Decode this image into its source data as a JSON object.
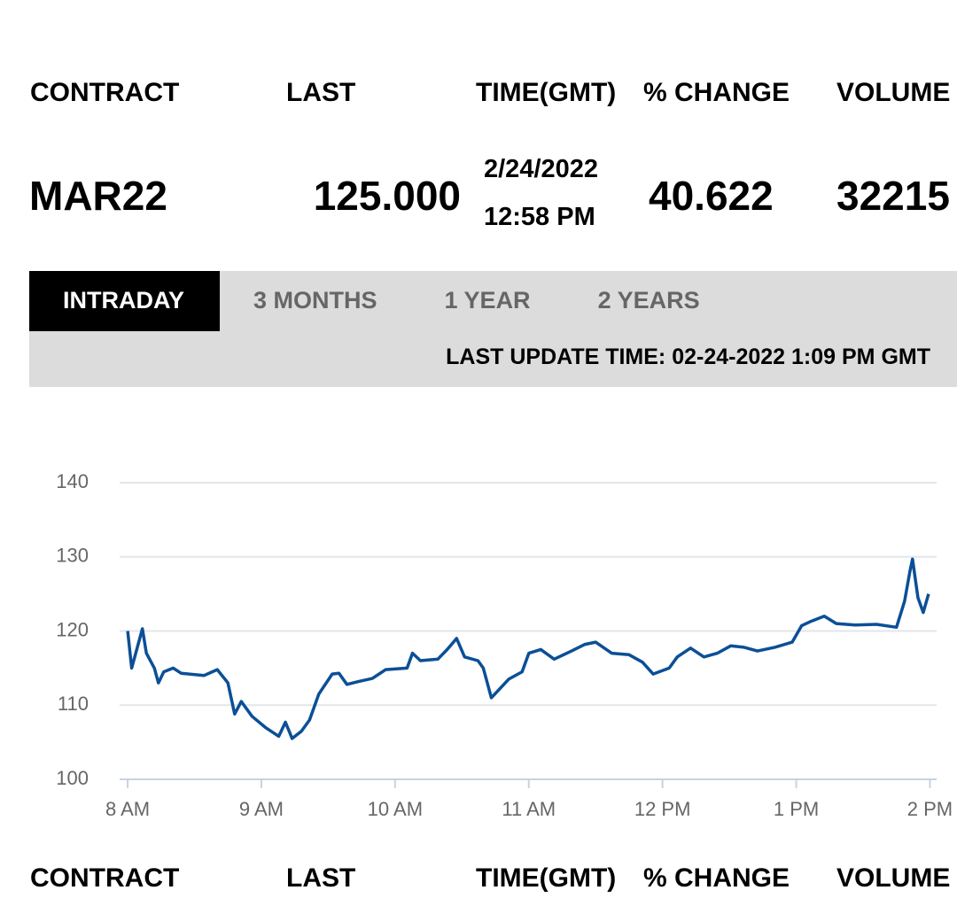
{
  "table": {
    "columns": [
      "CONTRACT",
      "LAST",
      "TIME(GMT)",
      "% CHANGE",
      "VOLUME"
    ],
    "row": {
      "contract": "MAR22",
      "last": "125.000",
      "date": "2/24/2022",
      "time": "12:58 PM",
      "change": "40.622",
      "volume": "32215"
    }
  },
  "tabs": [
    "INTRADAY",
    "3 MONTHS",
    "1 YEAR",
    "2 YEARS"
  ],
  "last_update": "LAST UPDATE TIME: 02-24-2022 1:09 PM GMT",
  "chart_data": {
    "type": "line",
    "x": [
      8.0,
      8.03,
      8.11,
      8.14,
      8.2,
      8.23,
      8.27,
      8.34,
      8.4,
      8.57,
      8.67,
      8.75,
      8.8,
      8.85,
      8.93,
      9.03,
      9.13,
      9.18,
      9.23,
      9.3,
      9.36,
      9.43,
      9.53,
      9.58,
      9.64,
      9.73,
      9.83,
      9.93,
      10.09,
      10.13,
      10.19,
      10.32,
      10.39,
      10.46,
      10.52,
      10.62,
      10.66,
      10.72,
      10.85,
      10.95,
      11.0,
      11.09,
      11.19,
      11.32,
      11.42,
      11.5,
      11.62,
      11.75,
      11.85,
      11.93,
      12.05,
      12.11,
      12.21,
      12.31,
      12.41,
      12.51,
      12.61,
      12.71,
      12.84,
      12.97,
      13.04,
      13.11,
      13.21,
      13.3,
      13.44,
      13.6,
      13.75,
      13.81,
      13.85,
      13.87,
      13.91,
      13.95,
      13.99
    ],
    "series": [
      {
        "color": "#0b4f96",
        "values": [
          120,
          115,
          120.3,
          117,
          115,
          113,
          114.5,
          115,
          114.3,
          114,
          114.8,
          113,
          108.8,
          110.5,
          108.5,
          107,
          105.8,
          107.7,
          105.5,
          106.5,
          108,
          111.5,
          114.2,
          114.3,
          112.8,
          113.2,
          113.6,
          114.8,
          115,
          117,
          116,
          116.2,
          117.5,
          119,
          116.5,
          116,
          115,
          111,
          113.5,
          114.5,
          117,
          117.5,
          116.2,
          117.3,
          118.2,
          118.5,
          117,
          116.8,
          115.8,
          114.2,
          115,
          116.5,
          117.7,
          116.5,
          117,
          118,
          117.8,
          117.3,
          117.8,
          118.5,
          120.7,
          121.3,
          122,
          121,
          120.8,
          120.9,
          120.5,
          124,
          128,
          129.7,
          124.5,
          122.5,
          125
        ]
      }
    ],
    "xlim": [
      7.94,
      14.05
    ],
    "xticks": [
      {
        "value": 8,
        "label": "8 AM"
      },
      {
        "value": 9,
        "label": "9 AM"
      },
      {
        "value": 10,
        "label": "10 AM"
      },
      {
        "value": 11,
        "label": "11 AM"
      },
      {
        "value": 12,
        "label": "12 PM"
      },
      {
        "value": 13,
        "label": "1 PM"
      },
      {
        "value": 14,
        "label": "2 PM"
      }
    ],
    "ylim": [
      100,
      140
    ],
    "yticks": [
      100,
      110,
      120,
      130,
      140
    ],
    "grid": true
  }
}
